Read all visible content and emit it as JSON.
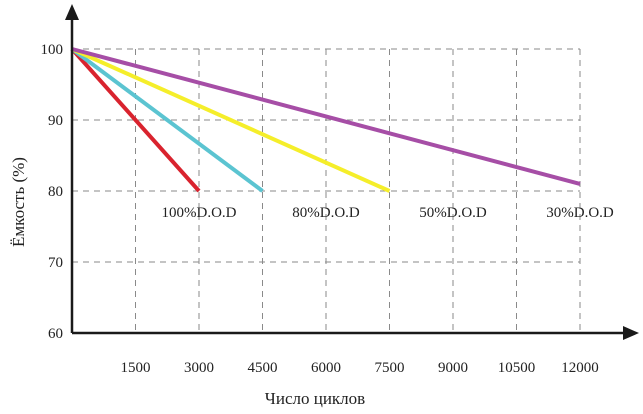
{
  "chart_data": {
    "type": "line",
    "xlabel": "Число циклов",
    "ylabel": "Ёмкость (%)",
    "xlim": [
      0,
      12000
    ],
    "ylim": [
      60,
      100
    ],
    "x_ticks": [
      1500,
      3000,
      4500,
      6000,
      7500,
      9000,
      10500,
      12000
    ],
    "x_tick_labels": [
      "1500",
      "3000",
      "4500",
      "6000",
      "7500",
      "9000",
      "10500",
      "12000"
    ],
    "y_ticks": [
      60,
      70,
      80,
      90,
      100
    ],
    "y_tick_labels": [
      "60",
      "70",
      "80",
      "90",
      "100"
    ],
    "grid": true,
    "legend": "none",
    "series": [
      {
        "name": "100%D.O.D",
        "color": "#d9232e",
        "x": [
          0,
          3000
        ],
        "y": [
          100,
          80
        ]
      },
      {
        "name": "80%D.O.D",
        "color": "#5bc4d1",
        "x": [
          0,
          4500
        ],
        "y": [
          100,
          80
        ]
      },
      {
        "name": "50%D.O.D",
        "color": "#f5ee2a",
        "x": [
          0,
          7500
        ],
        "y": [
          100,
          80
        ]
      },
      {
        "name": "30%D.O.D",
        "color": "#a64ea6",
        "x": [
          0,
          12000
        ],
        "y": [
          100,
          81
        ]
      }
    ],
    "series_labels": [
      {
        "text": "100%D.O.D",
        "x": 3000,
        "y": 78
      },
      {
        "text": "80%D.O.D",
        "x": 6000,
        "y": 78
      },
      {
        "text": "50%D.O.D",
        "x": 9000,
        "y": 78
      },
      {
        "text": "30%D.O.D",
        "x": 12000,
        "y": 78
      }
    ]
  }
}
